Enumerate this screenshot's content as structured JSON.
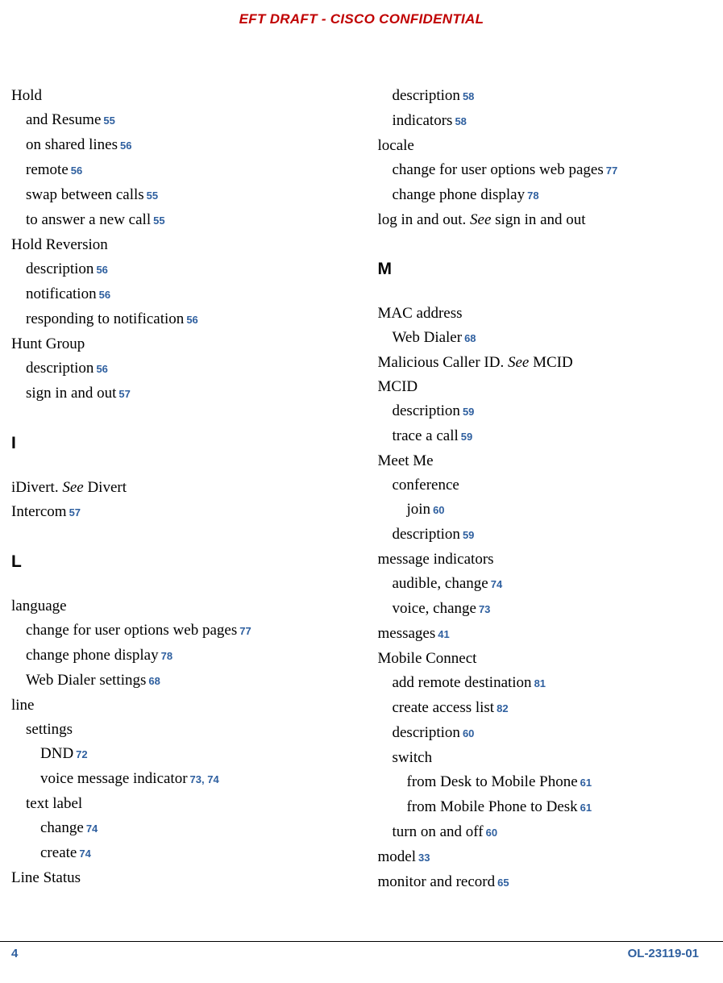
{
  "header": "EFT DRAFT - CISCO CONFIDENTIAL",
  "footer": {
    "page": "4",
    "doc_id": "OL-23119-01"
  },
  "colors": {
    "header_red": "#c00000",
    "link_blue": "#2e5f9f",
    "text": "#000000",
    "bg": "#ffffff"
  },
  "left": {
    "hold": {
      "title": "Hold",
      "and_resume": {
        "text": "and Resume",
        "page": "55"
      },
      "on_shared_lines": {
        "text": "on shared lines",
        "page": "56"
      },
      "remote": {
        "text": "remote",
        "page": "56"
      },
      "swap": {
        "text": "swap between calls",
        "page": "55"
      },
      "answer_new": {
        "text": "to answer a new call",
        "page": "55"
      }
    },
    "hold_reversion": {
      "title": "Hold Reversion",
      "description": {
        "text": "description",
        "page": "56"
      },
      "notification": {
        "text": "notification",
        "page": "56"
      },
      "responding": {
        "text": "responding to notification",
        "page": "56"
      }
    },
    "hunt_group": {
      "title": "Hunt Group",
      "description": {
        "text": "description",
        "page": "56"
      },
      "sign": {
        "text": "sign in and out",
        "page": "57"
      }
    },
    "section_i": "I",
    "idivert_pre": "iDivert. ",
    "idivert_see": "See",
    "idivert_post": " Divert",
    "intercom": {
      "text": "Intercom",
      "page": "57"
    },
    "section_l": "L",
    "language": {
      "title": "language",
      "change_user": {
        "text": "change for user options web pages",
        "page": "77"
      },
      "change_phone": {
        "text": "change phone display",
        "page": "78"
      },
      "web_dialer": {
        "text": "Web Dialer settings",
        "page": "68"
      }
    },
    "line": {
      "title": "line",
      "settings": "settings",
      "dnd": {
        "text": "DND",
        "page": "72"
      },
      "voice_msg": {
        "text": "voice message indicator",
        "page": "73, 74"
      },
      "text_label": "text label",
      "change": {
        "text": "change",
        "page": "74"
      },
      "create": {
        "text": "create",
        "page": "74"
      }
    },
    "line_status": "Line Status"
  },
  "right": {
    "line_status_cont": {
      "description": {
        "text": "description",
        "page": "58"
      },
      "indicators": {
        "text": "indicators",
        "page": "58"
      }
    },
    "locale": {
      "title": "locale",
      "change_user": {
        "text": "change for user options web pages",
        "page": "77"
      },
      "change_phone": {
        "text": "change phone display",
        "page": "78"
      }
    },
    "log_pre": "log in and out. ",
    "log_see": "See",
    "log_post": " sign in and out",
    "section_m": "M",
    "mac": {
      "title": "MAC address",
      "web_dialer": {
        "text": "Web Dialer",
        "page": "68"
      }
    },
    "malicious_pre": "Malicious Caller ID. ",
    "malicious_see": "See",
    "malicious_post": " MCID",
    "mcid": {
      "title": "MCID",
      "description": {
        "text": "description",
        "page": "59"
      },
      "trace": {
        "text": "trace a call",
        "page": "59"
      }
    },
    "meet_me": {
      "title": "Meet Me",
      "conference": "conference",
      "join": {
        "text": "join",
        "page": "60"
      },
      "description": {
        "text": "description",
        "page": "59"
      }
    },
    "msg_indicators": {
      "title": "message indicators",
      "audible": {
        "text": "audible, change",
        "page": "74"
      },
      "voice": {
        "text": "voice, change",
        "page": "73"
      }
    },
    "messages": {
      "text": "messages",
      "page": "41"
    },
    "mobile_connect": {
      "title": "Mobile Connect",
      "add_remote": {
        "text": "add remote destination",
        "page": "81"
      },
      "create_access": {
        "text": "create access list",
        "page": "82"
      },
      "description": {
        "text": "description",
        "page": "60"
      },
      "switch": "switch",
      "desk_to_mobile": {
        "text": "from Desk to Mobile Phone",
        "page": "61"
      },
      "mobile_to_desk": {
        "text": "from Mobile Phone to Desk",
        "page": "61"
      },
      "turn_on_off": {
        "text": "turn on and off",
        "page": "60"
      }
    },
    "model": {
      "text": "model",
      "page": "33"
    },
    "monitor": {
      "text": "monitor and record",
      "page": "65"
    }
  }
}
